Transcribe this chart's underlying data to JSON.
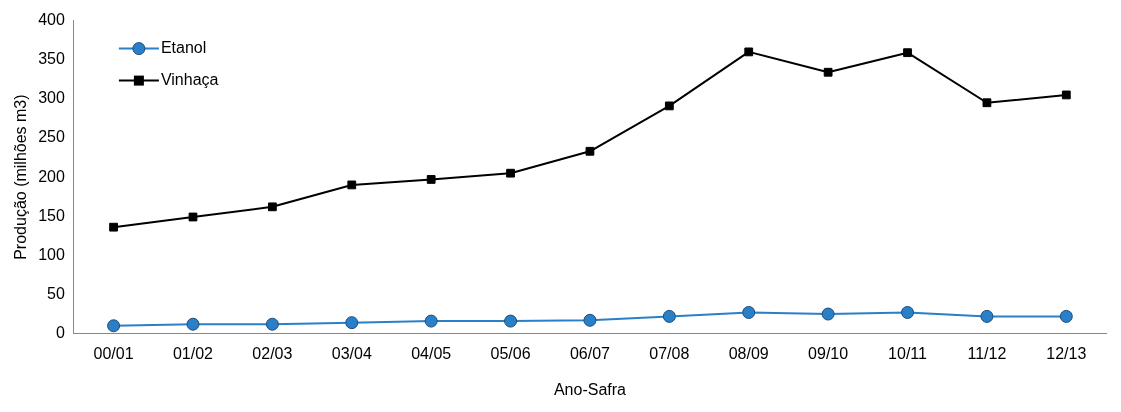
{
  "chart_data": {
    "type": "line",
    "xlabel": "Ano-Safra",
    "ylabel": "Produção (milhões m3)",
    "categories": [
      "00/01",
      "01/02",
      "02/03",
      "03/04",
      "04/05",
      "05/06",
      "06/07",
      "07/08",
      "08/09",
      "09/10",
      "10/11",
      "11/12",
      "12/13"
    ],
    "series": [
      {
        "name": "Etanol",
        "color": "#2a7fc9",
        "marker": "circle",
        "values": [
          10,
          12,
          12,
          14,
          16,
          16,
          17,
          22,
          27,
          25,
          27,
          22,
          22
        ]
      },
      {
        "name": "Vinhaça",
        "color": "#000000",
        "marker": "square",
        "values": [
          136,
          149,
          162,
          190,
          197,
          205,
          233,
          291,
          360,
          334,
          359,
          295,
          305
        ]
      }
    ],
    "ylim": [
      0,
      400
    ],
    "yticks": [
      0,
      50,
      100,
      150,
      200,
      250,
      300,
      350,
      400
    ],
    "grid": false,
    "legend": "top left",
    "line_style": "solid"
  }
}
